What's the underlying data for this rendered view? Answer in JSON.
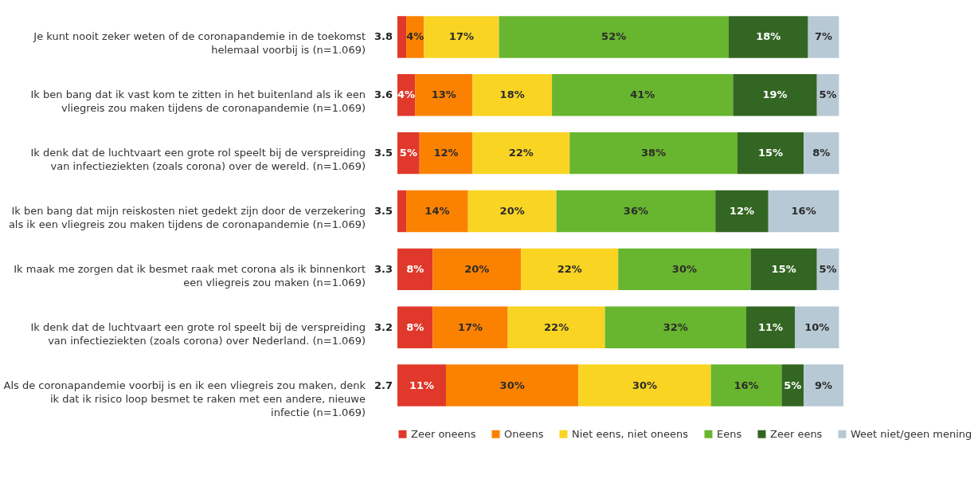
{
  "chart_data": {
    "type": "bar",
    "orientation": "horizontal",
    "stacked": true,
    "legend": "bottom",
    "grid": false,
    "tick_labels": "y",
    "categories": [
      "Je kunt nooit zeker weten of de coronapandemie in de toekomst helemaal voorbij is (n=1.069)",
      "Ik ben bang dat ik vast kom te zitten in het buitenland als ik een vliegreis zou maken tijdens de coronapandemie (n=1.069)",
      "Ik denk dat de luchtvaart een grote rol speelt bij de verspreiding van infectieziekten (zoals corona) over de wereld. (n=1.069)",
      "Ik ben bang dat mijn reiskosten niet gedekt zijn door de verzekering als ik een vliegreis zou maken tijdens de coronapandemie (n=1.069)",
      "Ik maak me zorgen dat ik besmet raak met corona als ik binnenkort een vliegreis zou maken (n=1.069)",
      "Ik denk dat de luchtvaart een grote rol speelt bij de verspreiding van infectieziekten (zoals corona) over Nederland. (n=1.069)",
      "Als de coronapandemie voorbij is en ik een vliegreis zou maken, denk ik dat ik risico loop besmet te raken met een andere, nieuwe infectie (n=1.069)"
    ],
    "series": [
      {
        "name": "Zeer oneens",
        "color": "#e0392b",
        "values": [
          2,
          4,
          5,
          2,
          8,
          8,
          11
        ],
        "value_labels": [
          null,
          "4%",
          "5%",
          null,
          "8%",
          "8%",
          "11%"
        ]
      },
      {
        "name": "Oneens",
        "color": "#fb8200",
        "values": [
          4,
          13,
          12,
          14,
          20,
          17,
          30
        ],
        "value_labels": [
          "4%",
          "13%",
          "12%",
          "14%",
          "20%",
          "17%",
          "30%"
        ]
      },
      {
        "name": "Niet eens, niet oneens",
        "color": "#f9d423",
        "values": [
          17,
          18,
          22,
          20,
          22,
          22,
          30
        ],
        "value_labels": [
          "17%",
          "18%",
          "22%",
          "20%",
          "22%",
          "22%",
          "30%"
        ]
      },
      {
        "name": "Eens",
        "color": "#68b52f",
        "values": [
          52,
          41,
          38,
          36,
          30,
          32,
          16
        ],
        "value_labels": [
          "52%",
          "41%",
          "38%",
          "36%",
          "30%",
          "32%",
          "16%"
        ]
      },
      {
        "name": "Zeer eens",
        "color": "#336622",
        "values": [
          18,
          19,
          15,
          12,
          15,
          11,
          5
        ],
        "value_labels": [
          "18%",
          "19%",
          "15%",
          "12%",
          "15%",
          "11%",
          "5%"
        ]
      },
      {
        "name": "Weet niet/geen mening",
        "color": "#b8c9d6",
        "values": [
          7,
          5,
          8,
          16,
          5,
          10,
          9
        ],
        "value_labels": [
          "7%",
          "5%",
          "8%",
          "16%",
          "5%",
          "10%",
          "9%"
        ]
      }
    ],
    "annotations": [
      "3.8",
      "3.6",
      "3.5",
      "3.5",
      "3.3",
      "3.2",
      "2.7"
    ]
  }
}
